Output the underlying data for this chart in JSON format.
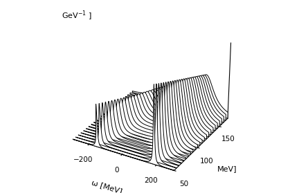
{
  "xlabel": "ω [MeV]",
  "ylabel_T": "MeV]",
  "zlabel": "GeV⁻¹ ]",
  "omega_min": -300,
  "omega_max": 300,
  "T_min": 50,
  "T_max": 170,
  "n_T": 25,
  "line_color": "black",
  "line_width": 0.7,
  "T_ticks": [
    50,
    100,
    150
  ],
  "omega_ticks": [
    -200,
    0,
    200
  ],
  "elev": 28,
  "azim": -60
}
